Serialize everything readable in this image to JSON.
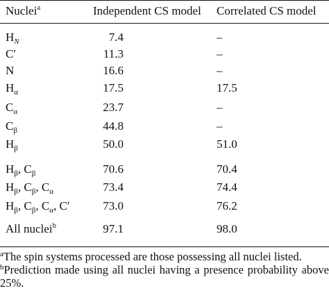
{
  "table": {
    "headers": {
      "nuclei": "Nuclei",
      "nuclei_note": "a",
      "independent": "Independent CS model",
      "correlated": "Correlated CS model"
    },
    "rows": [
      {
        "nuc": "H",
        "sub": "N",
        "ind": "7.4",
        "cor": "–"
      },
      {
        "nuc": "C′",
        "ind": "11.3",
        "cor": "–"
      },
      {
        "nuc": "N",
        "ind": "16.6",
        "cor": "–"
      },
      {
        "nuc": "H",
        "sub": "α",
        "ind": "17.5",
        "cor": "17.5"
      },
      {
        "nuc": "C",
        "sub": "α",
        "ind": "23.7",
        "cor": "–"
      },
      {
        "nuc": "C",
        "sub": "β",
        "ind": "44.8",
        "cor": "–"
      },
      {
        "nuc": "H",
        "sub": "β",
        "ind": "50.0",
        "cor": "51.0"
      },
      {
        "parts": [
          {
            "nuc": "H",
            "sub": "β"
          },
          {
            "nuc": "C",
            "sub": "β"
          }
        ],
        "ind": "70.6",
        "cor": "70.4"
      },
      {
        "parts": [
          {
            "nuc": "H",
            "sub": "β"
          },
          {
            "nuc": "C",
            "sub": "β"
          },
          {
            "nuc": "C",
            "sub": "α"
          }
        ],
        "ind": "73.4",
        "cor": "74.4"
      },
      {
        "parts": [
          {
            "nuc": "H",
            "sub": "β"
          },
          {
            "nuc": "C",
            "sub": "β"
          },
          {
            "nuc": "C",
            "sub": "α"
          },
          {
            "nuc": "C′"
          }
        ],
        "ind": "73.0",
        "cor": "76.2"
      },
      {
        "nuc": "All nuclei",
        "note": "b",
        "ind": "97.1",
        "cor": "98.0"
      }
    ]
  },
  "footnotes": [
    {
      "mark": "a",
      "text": "The spin systems processed are those possessing all nuclei listed."
    },
    {
      "mark": "b",
      "text": "Prediction made using all nuclei having a presence probability above 25%."
    }
  ]
}
